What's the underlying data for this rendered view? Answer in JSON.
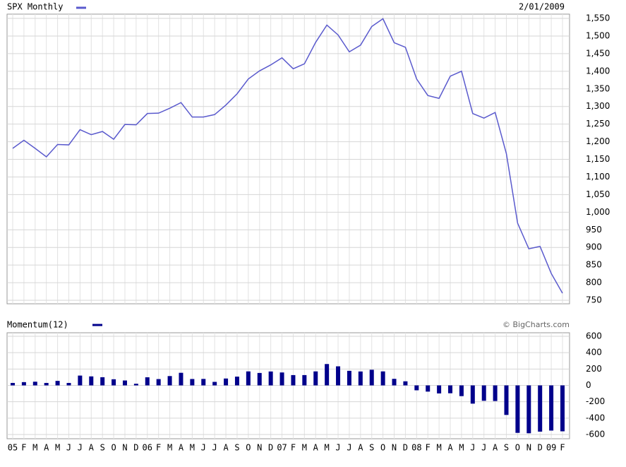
{
  "chart_data": [
    {
      "type": "line",
      "title": "SPX Monthly",
      "annotation": "2/01/2009",
      "categories": [
        "05",
        "F",
        "M",
        "A",
        "M",
        "J",
        "J",
        "A",
        "S",
        "O",
        "N",
        "D",
        "06",
        "F",
        "M",
        "A",
        "M",
        "J",
        "J",
        "A",
        "S",
        "O",
        "N",
        "D",
        "07",
        "F",
        "M",
        "A",
        "M",
        "J",
        "J",
        "A",
        "S",
        "O",
        "N",
        "D",
        "08",
        "F",
        "M",
        "A",
        "M",
        "J",
        "J",
        "A",
        "S",
        "O",
        "N",
        "D",
        "09",
        "F"
      ],
      "series": [
        {
          "name": "SPX Monthly",
          "color": "#5a5acd",
          "values": [
            1181,
            1204,
            1181,
            1157,
            1192,
            1191,
            1234,
            1220,
            1229,
            1207,
            1249,
            1248,
            1280,
            1281,
            1295,
            1311,
            1270,
            1270,
            1277,
            1304,
            1336,
            1378,
            1401,
            1418,
            1438,
            1407,
            1421,
            1482,
            1531,
            1503,
            1455,
            1474,
            1527,
            1549,
            1481,
            1468,
            1378,
            1331,
            1323,
            1386,
            1400,
            1280,
            1267,
            1283,
            1166,
            969,
            896,
            903,
            826,
            770
          ]
        }
      ],
      "ylim": [
        750,
        1550
      ],
      "yticks": [
        750,
        800,
        850,
        900,
        950,
        {
          "value": 1000,
          "label": "1,000"
        },
        {
          "value": 1050,
          "label": "1,050"
        },
        {
          "value": 1100,
          "label": "1,100"
        },
        {
          "value": 1150,
          "label": "1,150"
        },
        {
          "value": 1200,
          "label": "1,200"
        },
        {
          "value": 1250,
          "label": "1,250"
        },
        {
          "value": 1300,
          "label": "1,300"
        },
        {
          "value": 1350,
          "label": "1,350"
        },
        {
          "value": 1400,
          "label": "1,400"
        },
        {
          "value": 1450,
          "label": "1,450"
        },
        {
          "value": 1500,
          "label": "1,500"
        },
        {
          "value": 1550,
          "label": "1,550"
        }
      ],
      "grid": true
    },
    {
      "type": "bar",
      "title": "Momentum(12)",
      "annotation": "© BigCharts.com",
      "series": [
        {
          "name": "Momentum(12)",
          "color": "#00008b",
          "values": [
            30,
            40,
            45,
            30,
            55,
            30,
            120,
            110,
            100,
            75,
            60,
            20,
            99,
            77,
            114,
            154,
            78,
            79,
            43,
            84,
            107,
            171,
            152,
            170,
            158,
            126,
            126,
            171,
            261,
            233,
            178,
            170,
            191,
            171,
            80,
            50,
            -60,
            -76,
            -98,
            -96,
            -131,
            -223,
            -188,
            -191,
            -361,
            -580,
            -585,
            -565,
            -552,
            -561
          ]
        }
      ],
      "ylim": [
        -600,
        600
      ],
      "yticks": [
        600,
        400,
        200,
        0,
        -200,
        -400,
        -600
      ],
      "grid": true
    }
  ]
}
